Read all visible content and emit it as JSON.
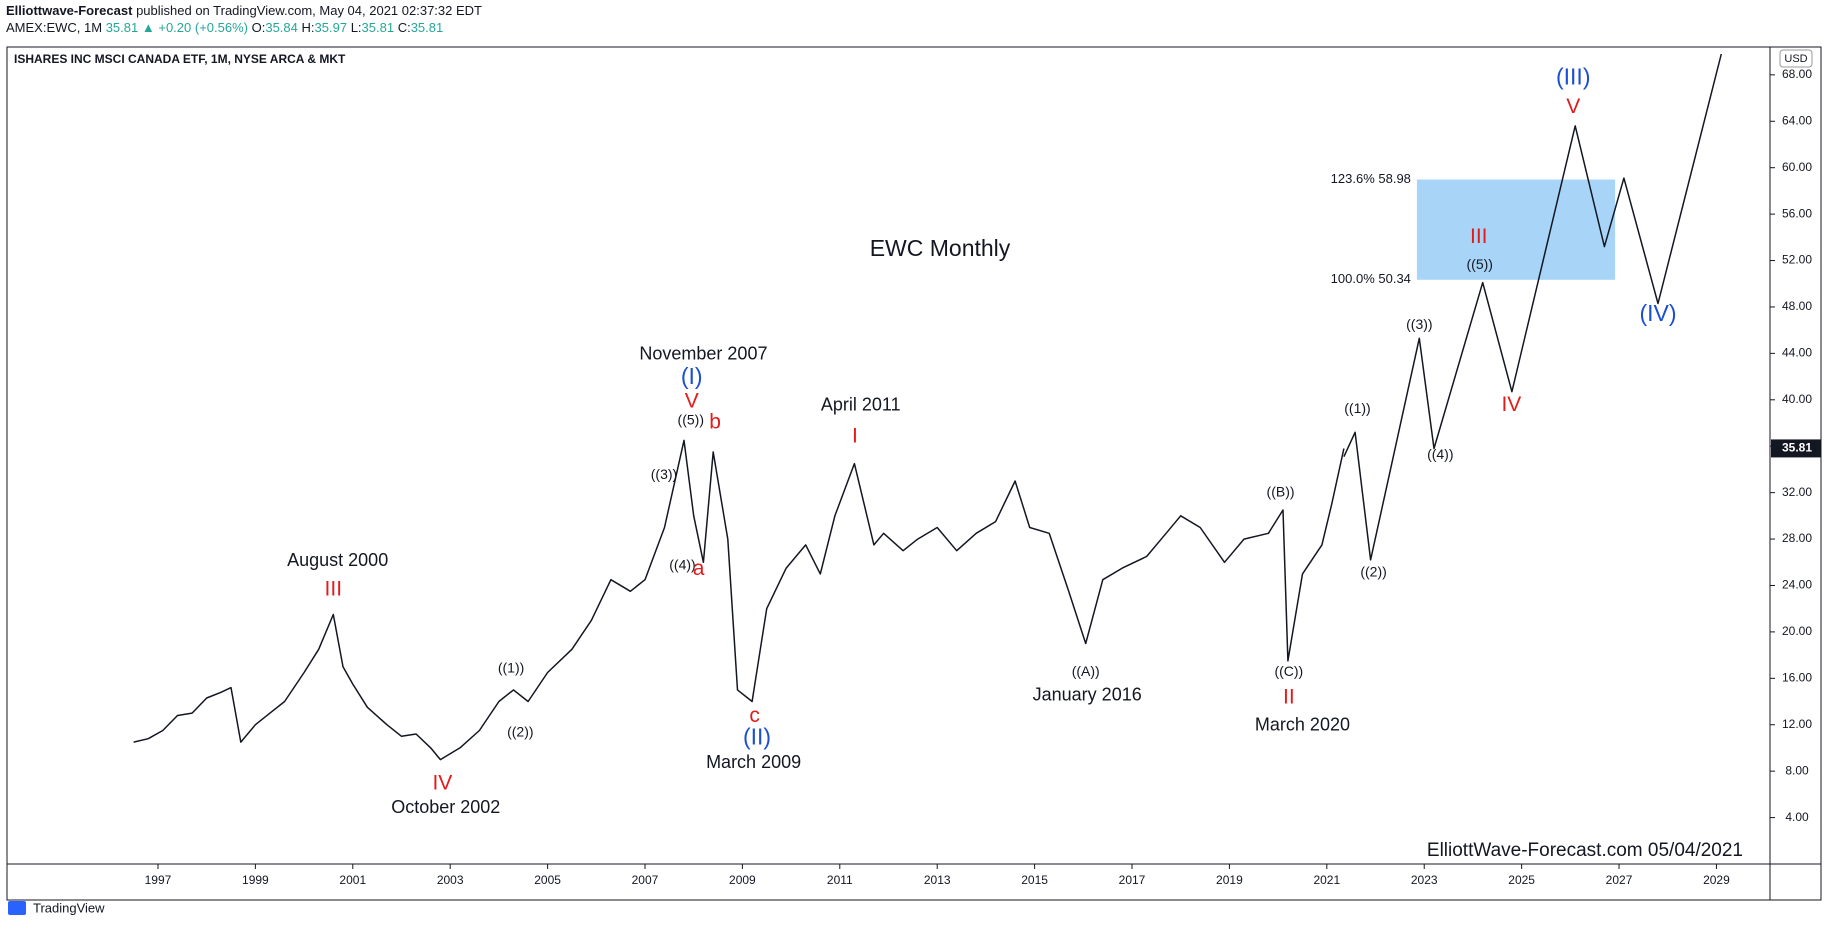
{
  "header": {
    "author": "Elliottwave-Forecast",
    "published": "published on TradingView.com, May 04, 2021 02:37:32 EDT",
    "symbol": "AMEX:EWC, 1M",
    "price": "35.81",
    "change": "▲ +0.20 (+0.56%)",
    "ohlc": [
      "O:",
      "35.84",
      "H:",
      "35.97",
      "L:",
      "35.81",
      "C:",
      "35.81"
    ],
    "logo": "TradingView"
  },
  "chart_data": {
    "type": "line",
    "instrument": "ISHARES INC MSCI CANADA ETF, 1M, NYSE ARCA & MKT",
    "title": "EWC Monthly",
    "watermark": "ElliottWave-Forecast.com 05/04/2021",
    "currency": "USD",
    "last_price": 35.81,
    "xlim": [
      1993.9,
      2030.1
    ],
    "xticks": [
      1997,
      1999,
      2001,
      2003,
      2005,
      2007,
      2009,
      2011,
      2013,
      2015,
      2017,
      2019,
      2021,
      2023,
      2025,
      2027,
      2029
    ],
    "ylim": [
      0,
      70.4
    ],
    "yticks": [
      {
        "value": 4,
        "label": "4.00"
      },
      {
        "value": 8,
        "label": "8.00"
      },
      {
        "value": 12,
        "label": "12.00"
      },
      {
        "value": 16,
        "label": "16.00"
      },
      {
        "value": 20,
        "label": "20.00"
      },
      {
        "value": 24,
        "label": "24.00"
      },
      {
        "value": 28,
        "label": "28.00"
      },
      {
        "value": 32,
        "label": "32.00"
      },
      {
        "value": 36,
        "label": "36.00"
      },
      {
        "value": 40,
        "label": "40.00"
      },
      {
        "value": 44,
        "label": "44.00"
      },
      {
        "value": 48,
        "label": "48.00"
      },
      {
        "value": 52,
        "label": "52.00"
      },
      {
        "value": 56,
        "label": "56.00"
      },
      {
        "value": 60,
        "label": "60.00"
      },
      {
        "value": 64,
        "label": "64.00"
      },
      {
        "value": 68,
        "label": "68.00"
      }
    ],
    "grid": false,
    "series": [
      {
        "color": "#131722",
        "x": [
          1996.5,
          1996.8,
          1997.1,
          1997.4,
          1997.7,
          1998.0,
          1998.3,
          1998.5,
          1998.7,
          1999.0,
          1999.3,
          1999.6,
          2000.0,
          2000.3,
          2000.6,
          2000.8,
          2001.0,
          2001.3,
          2001.7,
          2002.0,
          2002.3,
          2002.6,
          2002.8,
          2003.2,
          2003.6,
          2004.0,
          2004.3,
          2004.6,
          2005.0,
          2005.5,
          2005.9,
          2006.3,
          2006.7,
          2007.0,
          2007.4,
          2007.8,
          2008.0,
          2008.2,
          2008.4,
          2008.7,
          2008.9,
          2009.2,
          2009.5,
          2009.9,
          2010.3,
          2010.6,
          2010.9,
          2011.3,
          2011.7,
          2011.9,
          2012.3,
          2012.6,
          2013.0,
          2013.4,
          2013.8,
          2014.2,
          2014.6,
          2014.9,
          2015.3,
          2015.7,
          2016.05,
          2016.4,
          2016.8,
          2017.3,
          2017.7,
          2018.0,
          2018.4,
          2018.9,
          2019.3,
          2019.8,
          2020.1,
          2020.2,
          2020.5,
          2020.9,
          2021.1,
          2021.35
        ],
        "values": [
          10.5,
          10.8,
          11.5,
          12.8,
          13.0,
          14.3,
          14.8,
          15.2,
          10.5,
          12.0,
          13.0,
          14.0,
          16.5,
          18.5,
          21.5,
          17.0,
          15.5,
          13.5,
          12.0,
          11.0,
          11.2,
          10.0,
          9.0,
          10.0,
          11.5,
          14.0,
          15.0,
          14.0,
          16.5,
          18.5,
          21.0,
          24.5,
          23.5,
          24.5,
          29.0,
          36.5,
          30.0,
          26.0,
          35.5,
          28.0,
          15.0,
          14.0,
          22.0,
          25.5,
          27.5,
          25.0,
          30.0,
          34.5,
          27.5,
          28.5,
          27.0,
          28.0,
          29.0,
          27.0,
          28.5,
          29.5,
          33.0,
          29.0,
          28.5,
          23.5,
          19.0,
          24.5,
          25.5,
          26.5,
          28.5,
          30.0,
          29.0,
          26.0,
          28.0,
          28.5,
          30.5,
          17.5,
          25.0,
          27.5,
          31.0,
          35.8
        ]
      },
      {
        "color": "#131722",
        "x": [
          2021.35,
          2021.58,
          2021.9,
          2022.9,
          2023.2,
          2024.2,
          2024.8,
          2026.1,
          2026.7,
          2027.1,
          2027.8,
          2029.1
        ],
        "values": [
          35.1,
          37.2,
          26.2,
          45.3,
          35.8,
          50.1,
          40.7,
          63.6,
          53.2,
          59.1,
          48.3,
          69.8
        ]
      }
    ],
    "fib": {
      "color": "#a8d5f7",
      "x": [
        2022.85,
        2026.92
      ],
      "levels": [
        {
          "value": 58.98,
          "label": "123.6% 58.98"
        },
        {
          "value": 50.34,
          "label": "100.0% 50.34"
        }
      ]
    },
    "annotations": [
      {
        "text": "August 2000",
        "x": 2000.69,
        "y": 26.1,
        "color": "#131722"
      },
      {
        "text": "III",
        "x": 2000.6,
        "y": 23.6,
        "color": "#e31b1b"
      },
      {
        "text": "IV",
        "x": 2002.84,
        "y": 6.9,
        "color": "#e31b1b"
      },
      {
        "text": "October 2002",
        "x": 2002.91,
        "y": 4.8,
        "color": "#131722"
      },
      {
        "text": "((1))",
        "x": 2004.25,
        "y": 16.8,
        "color": "#131722"
      },
      {
        "text": "((2))",
        "x": 2004.44,
        "y": 11.3,
        "color": "#131722"
      },
      {
        "text": "November 2007",
        "x": 2008.2,
        "y": 43.9,
        "color": "#131722"
      },
      {
        "text": "(I)",
        "x": 2007.96,
        "y": 41.9,
        "color": "#1a4fd1"
      },
      {
        "text": "V",
        "x": 2007.96,
        "y": 39.8,
        "color": "#e31b1b"
      },
      {
        "text": "((5))",
        "x": 2007.94,
        "y": 38.2,
        "color": "#131722"
      },
      {
        "text": "b",
        "x": 2008.44,
        "y": 38.0,
        "color": "#e31b1b"
      },
      {
        "text": "((3))",
        "x": 2007.39,
        "y": 33.5,
        "color": "#131722"
      },
      {
        "text": "((4))",
        "x": 2007.77,
        "y": 25.7,
        "color": "#131722"
      },
      {
        "text": "a",
        "x": 2008.1,
        "y": 25.4,
        "color": "#e31b1b"
      },
      {
        "text": "c",
        "x": 2009.25,
        "y": 12.7,
        "color": "#e31b1b"
      },
      {
        "text": "(II)",
        "x": 2009.3,
        "y": 10.8,
        "color": "#1a4fd1"
      },
      {
        "text": "March 2009",
        "x": 2009.23,
        "y": 8.7,
        "color": "#131722"
      },
      {
        "text": "April 2011",
        "x": 2011.43,
        "y": 39.5,
        "color": "#131722"
      },
      {
        "text": "I",
        "x": 2011.31,
        "y": 36.8,
        "color": "#e31b1b"
      },
      {
        "text": "((A))",
        "x": 2016.05,
        "y": 16.5,
        "color": "#131722"
      },
      {
        "text": "January 2016",
        "x": 2016.08,
        "y": 14.5,
        "color": "#131722"
      },
      {
        "text": "((B))",
        "x": 2020.05,
        "y": 32.0,
        "color": "#131722"
      },
      {
        "text": "((C))",
        "x": 2020.22,
        "y": 16.5,
        "color": "#131722"
      },
      {
        "text": "II",
        "x": 2020.22,
        "y": 14.3,
        "color": "#e31b1b"
      },
      {
        "text": "March 2020",
        "x": 2020.5,
        "y": 11.9,
        "color": "#131722"
      },
      {
        "text": "((1))",
        "x": 2021.63,
        "y": 39.2,
        "color": "#131722"
      },
      {
        "text": "((2))",
        "x": 2021.96,
        "y": 25.1,
        "color": "#131722"
      },
      {
        "text": "((3))",
        "x": 2022.9,
        "y": 46.4,
        "color": "#131722"
      },
      {
        "text": "((4))",
        "x": 2023.33,
        "y": 35.2,
        "color": "#131722"
      },
      {
        "text": "((5))",
        "x": 2024.14,
        "y": 51.6,
        "color": "#131722"
      },
      {
        "text": "III",
        "x": 2024.12,
        "y": 54.0,
        "color": "#e31b1b"
      },
      {
        "text": "IV",
        "x": 2024.79,
        "y": 39.5,
        "color": "#e31b1b"
      },
      {
        "text": "V",
        "x": 2026.06,
        "y": 65.2,
        "color": "#e31b1b"
      },
      {
        "text": "(III)",
        "x": 2026.06,
        "y": 67.7,
        "color": "#1a4fd1"
      },
      {
        "text": "(IV)",
        "x": 2027.8,
        "y": 47.3,
        "color": "#1a4fd1"
      }
    ]
  }
}
